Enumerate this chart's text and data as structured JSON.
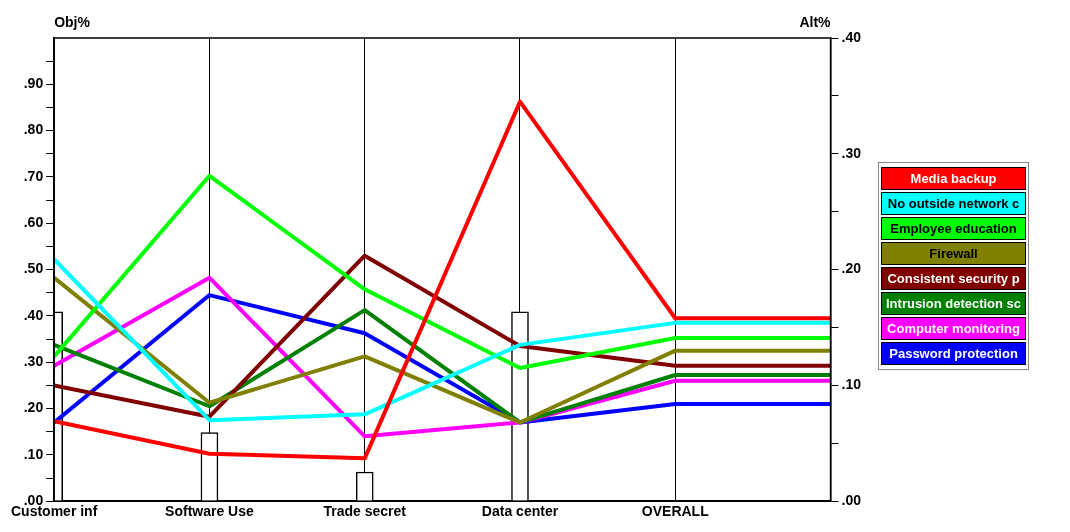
{
  "chart_data": {
    "type": "line",
    "ylabel": "Obj%",
    "y2label": "Alt%",
    "categories": [
      "Customer inf",
      "Software Use",
      "Trade secret",
      "Data center",
      "OVERALL",
      null
    ],
    "ylim": [
      0,
      1.0
    ],
    "yticks": [
      {
        "value": 0,
        "label": ".00"
      },
      {
        "value": 0.05,
        "label": null
      },
      {
        "value": 0.1,
        "label": ".10"
      },
      {
        "value": 0.15,
        "label": null
      },
      {
        "value": 0.2,
        "label": ".20"
      },
      {
        "value": 0.25,
        "label": null
      },
      {
        "value": 0.3,
        "label": ".30"
      },
      {
        "value": 0.35,
        "label": null
      },
      {
        "value": 0.4,
        "label": ".40"
      },
      {
        "value": 0.45,
        "label": null
      },
      {
        "value": 0.5,
        "label": ".50"
      },
      {
        "value": 0.55,
        "label": null
      },
      {
        "value": 0.6,
        "label": ".60"
      },
      {
        "value": 0.65,
        "label": null
      },
      {
        "value": 0.7,
        "label": ".70"
      },
      {
        "value": 0.75,
        "label": null
      },
      {
        "value": 0.8,
        "label": ".80"
      },
      {
        "value": 0.85,
        "label": null
      },
      {
        "value": 0.9,
        "label": ".90"
      },
      {
        "value": 0.95,
        "label": null
      }
    ],
    "y2lim": [
      0,
      0.4
    ],
    "y2ticks": [
      {
        "value": 0,
        "label": ".00"
      },
      {
        "value": 0.05,
        "label": null
      },
      {
        "value": 0.1,
        "label": ".10"
      },
      {
        "value": 0.15,
        "label": null
      },
      {
        "value": 0.2,
        "label": ".20"
      },
      {
        "value": 0.25,
        "label": null
      },
      {
        "value": 0.3,
        "label": ".30"
      },
      {
        "value": 0.35,
        "label": null
      },
      {
        "value": 0.4,
        "label": ".40"
      }
    ],
    "grid": "x",
    "legend": "right",
    "marker": "none",
    "series": [
      {
        "type": "bar",
        "axis": "y",
        "color": "#ffffff",
        "values": [
          0.409,
          0.148,
          0.063,
          0.409,
          null,
          null
        ]
      },
      {
        "name": "Media backup",
        "axis": "y2",
        "color": "#ff0000",
        "values": [
          0.069,
          0.041,
          0.037,
          0.345,
          0.158,
          0.158
        ]
      },
      {
        "name": "No outside network c",
        "axis": "y2",
        "color": "#00ffff",
        "values": [
          0.209,
          0.07,
          0.075,
          0.135,
          0.154,
          0.154
        ]
      },
      {
        "name": "Employee education",
        "axis": "y2",
        "color": "#00ff00",
        "values": [
          0.125,
          0.281,
          0.183,
          0.115,
          0.141,
          0.141
        ]
      },
      {
        "name": "Firewall",
        "axis": "y2",
        "color": "#808000",
        "values": [
          0.193,
          0.085,
          0.125,
          0.068,
          0.13,
          0.13
        ]
      },
      {
        "name": "Consistent security p",
        "axis": "y2",
        "color": "#800000",
        "values": [
          0.1,
          0.073,
          0.212,
          0.134,
          0.117,
          0.117
        ]
      },
      {
        "name": "Intrusion detection sc",
        "axis": "y2",
        "color": "#008000",
        "values": [
          0.135,
          0.082,
          0.165,
          0.068,
          0.109,
          0.109
        ]
      },
      {
        "name": "Computer monitoring",
        "axis": "y2",
        "color": "#ff00ff",
        "values": [
          0.117,
          0.193,
          0.056,
          0.068,
          0.104,
          0.104
        ]
      },
      {
        "name": "Password protection",
        "axis": "y2",
        "color": "#0000ff",
        "values": [
          0.068,
          0.178,
          0.145,
          0.068,
          0.084,
          0.084
        ]
      }
    ]
  }
}
